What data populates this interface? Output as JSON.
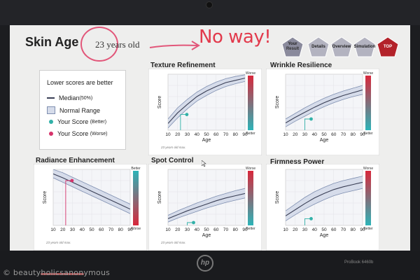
{
  "page": {
    "title": "Skin Age",
    "age_text": "23 years old",
    "annotation": "No way!"
  },
  "nav": [
    {
      "label": "Your Result",
      "line1": "Your",
      "line2": "Result",
      "color": "#8a8a9c"
    },
    {
      "label": "Details",
      "line1": "Details",
      "line2": "",
      "color": "#b3b3c0"
    },
    {
      "label": "Overview",
      "line1": "Overview",
      "line2": "",
      "color": "#b3b3c0"
    },
    {
      "label": "Simulation",
      "line1": "Simulation",
      "line2": "",
      "color": "#b3b3c0"
    },
    {
      "label": "TOP",
      "line1": "TOP",
      "line2": "",
      "color": "#b3222a"
    }
  ],
  "legend": {
    "header": "Lower scores are better",
    "median": "Median",
    "median_sub": "(50%)",
    "normal": "Normal Range",
    "better": "Your Score",
    "better_sub": "(Better)",
    "worse": "Your Score",
    "worse_sub": "(Worse)"
  },
  "colors": {
    "band": "#d6dcea",
    "band_line": "#7f8fb0",
    "median": "#3a3f55",
    "better_dot": "#32b1a8",
    "worse_dot": "#d6336b",
    "scale_red": "#d8283b",
    "scale_teal": "#2db4b8"
  },
  "watermark": "beautyholicsanonymous",
  "laptop": {
    "model": "ProBook 6460b",
    "brand": "hp"
  },
  "chart_data": [
    {
      "type": "line",
      "title": "Texture Refinement",
      "xlabel": "Age",
      "ylabel": "Score",
      "x": [
        10,
        20,
        30,
        40,
        50,
        60,
        70,
        80,
        90
      ],
      "series": [
        {
          "values": [
            20,
            40,
            55,
            68,
            78,
            86,
            92,
            96,
            99
          ]
        },
        {
          "values": [
            4,
            22,
            38,
            52,
            62,
            71,
            78,
            83,
            87
          ]
        },
        {
          "values": [
            12,
            31,
            46,
            60,
            70,
            78,
            85,
            89,
            93
          ]
        }
      ],
      "score": {
        "age": 23,
        "value": 28,
        "status": "better"
      },
      "scale_top": "Worse",
      "scale_bottom": "Better",
      "footnote": "23 years old max."
    },
    {
      "type": "line",
      "title": "Wrinkle Resilience",
      "xlabel": "Age",
      "ylabel": "Score",
      "x": [
        10,
        20,
        30,
        40,
        50,
        60,
        70,
        80,
        90
      ],
      "series": [
        {
          "values": [
            20,
            30,
            40,
            49,
            57,
            64,
            70,
            75,
            80
          ]
        },
        {
          "values": [
            6,
            16,
            25,
            34,
            42,
            49,
            55,
            60,
            64
          ]
        },
        {
          "values": [
            13,
            23,
            32,
            41,
            49,
            56,
            62,
            67,
            72
          ]
        }
      ],
      "score": {
        "age": 30,
        "value": 20,
        "status": "better"
      },
      "scale_top": "Worse",
      "scale_bottom": "Better",
      "footnote": ""
    },
    {
      "type": "line",
      "title": "Radiance Enhancement",
      "xlabel": "",
      "ylabel": "Score",
      "x": [
        10,
        20,
        30,
        40,
        50,
        60,
        70,
        80,
        90
      ],
      "series": [
        {
          "values": [
            100,
            94,
            86,
            78,
            70,
            62,
            54,
            46,
            38
          ]
        },
        {
          "values": [
            85,
            77,
            69,
            61,
            53,
            45,
            37,
            29,
            21
          ]
        },
        {
          "values": [
            92,
            85,
            77,
            69,
            61,
            53,
            45,
            37,
            29
          ]
        }
      ],
      "score": {
        "age": 23,
        "value": 80,
        "status": "worse"
      },
      "scale_top": "Better",
      "scale_bottom": "Worse",
      "footnote": "23 years old max."
    },
    {
      "type": "line",
      "title": "Spot Control",
      "xlabel": "Age",
      "ylabel": "Score",
      "x": [
        10,
        20,
        30,
        40,
        50,
        60,
        70,
        80,
        90
      ],
      "series": [
        {
          "values": [
            18,
            26,
            33,
            40,
            46,
            52,
            57,
            62,
            66
          ]
        },
        {
          "values": [
            6,
            13,
            19,
            25,
            31,
            36,
            41,
            45,
            49
          ]
        },
        {
          "values": [
            12,
            19,
            26,
            32,
            38,
            44,
            49,
            53,
            57
          ]
        }
      ],
      "score": {
        "age": 30,
        "value": 5,
        "status": "better"
      },
      "scale_top": "Worse",
      "scale_bottom": "Better",
      "footnote": "23 years old max."
    },
    {
      "type": "line",
      "title": "Firmness Power",
      "xlabel": "Age",
      "ylabel": "Score",
      "x": [
        10,
        20,
        30,
        40,
        50,
        60,
        70,
        80,
        90
      ],
      "series": [
        {
          "values": [
            26,
            38,
            50,
            60,
            68,
            75,
            80,
            84,
            88
          ]
        },
        {
          "values": [
            8,
            19,
            29,
            38,
            46,
            53,
            58,
            62,
            66
          ]
        },
        {
          "values": [
            17,
            28,
            39,
            49,
            57,
            64,
            69,
            73,
            77
          ]
        }
      ],
      "score": {
        "age": 30,
        "value": 12,
        "status": "better"
      },
      "scale_top": "Worse",
      "scale_bottom": "Better",
      "footnote": ""
    }
  ]
}
